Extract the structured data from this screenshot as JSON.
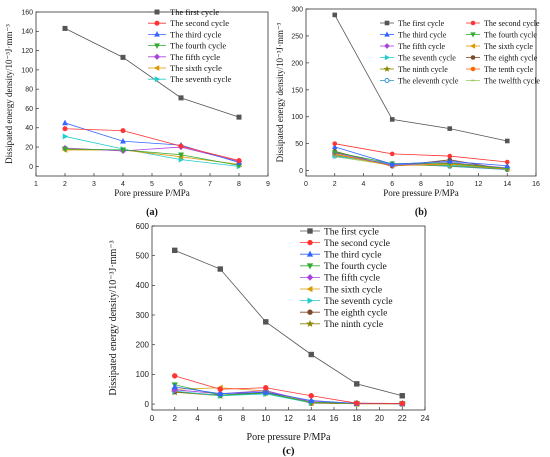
{
  "chart_data": [
    {
      "type": "line",
      "panel_label": "(a)",
      "xlabel": "Pore pressure  P/MPa",
      "ylabel": "Dissipated energy density/10⁻³J·mm⁻³",
      "xlim": [
        1,
        9
      ],
      "ylim": [
        -10,
        160
      ],
      "xticks": [
        1,
        2,
        3,
        4,
        5,
        6,
        7,
        8,
        9
      ],
      "yticks": [
        0,
        20,
        40,
        60,
        80,
        100,
        120,
        140,
        160
      ],
      "legend_position": "top-right",
      "x": [
        2,
        4,
        6,
        8
      ],
      "series": [
        {
          "name": "The first cycle",
          "color": "#555555",
          "marker": "square",
          "values": [
            143,
            113,
            71,
            51
          ]
        },
        {
          "name": "The second cycle",
          "color": "#ff3333",
          "marker": "circle",
          "values": [
            39,
            37,
            21,
            6
          ]
        },
        {
          "name": "The third cycle",
          "color": "#3366ff",
          "marker": "triangle-up",
          "values": [
            45,
            26,
            22,
            4
          ]
        },
        {
          "name": "The fourth cycle",
          "color": "#33aa33",
          "marker": "triangle-down",
          "values": [
            18,
            17,
            12,
            1
          ]
        },
        {
          "name": "The fifth cycle",
          "color": "#aa44dd",
          "marker": "diamond",
          "values": [
            19,
            16,
            20,
            5
          ]
        },
        {
          "name": "The sixth cycle",
          "color": "#dd9900",
          "marker": "triangle-left",
          "values": [
            17,
            17,
            10,
            2
          ]
        },
        {
          "name": "The seventh cycle",
          "color": "#22cccc",
          "marker": "triangle-right",
          "values": [
            31,
            18,
            7,
            0
          ]
        }
      ]
    },
    {
      "type": "line",
      "panel_label": "(b)",
      "xlabel": "Pore pressure  P/MPa",
      "ylabel": "Dissipated energy density/10⁻³J·mm⁻³",
      "xlim": [
        0,
        16
      ],
      "ylim": [
        -10,
        300
      ],
      "xticks": [
        0,
        2,
        4,
        6,
        8,
        10,
        12,
        14,
        16
      ],
      "yticks": [
        0,
        50,
        100,
        150,
        200,
        250,
        300
      ],
      "legend_position": "top-right",
      "x": [
        2,
        6,
        10,
        14
      ],
      "series": [
        {
          "name": "The first cycle",
          "color": "#555555",
          "marker": "square",
          "values": [
            289,
            95,
            78,
            55
          ]
        },
        {
          "name": "The second cycle",
          "color": "#ff3333",
          "marker": "circle",
          "values": [
            50,
            31,
            27,
            16
          ]
        },
        {
          "name": "The third cycle",
          "color": "#3366ff",
          "marker": "triangle-up",
          "values": [
            44,
            12,
            17,
            9
          ]
        },
        {
          "name": "The fourth cycle",
          "color": "#33aa33",
          "marker": "triangle-down",
          "values": [
            34,
            13,
            14,
            4
          ]
        },
        {
          "name": "The fifth cycle",
          "color": "#aa44dd",
          "marker": "diamond",
          "values": [
            33,
            10,
            15,
            5
          ]
        },
        {
          "name": "The sixth cycle",
          "color": "#dd9900",
          "marker": "triangle-left",
          "values": [
            30,
            9,
            12,
            3
          ]
        },
        {
          "name": "The seventh cycle",
          "color": "#22cccc",
          "marker": "triangle-right",
          "values": [
            28,
            12,
            10,
            4
          ]
        },
        {
          "name": "The eighth cycle",
          "color": "#7a4a2a",
          "marker": "circle",
          "values": [
            36,
            8,
            20,
            2
          ]
        },
        {
          "name": "The ninth cycle",
          "color": "#888800",
          "marker": "star",
          "values": [
            29,
            11,
            9,
            3
          ]
        },
        {
          "name": "The tenth cycle",
          "color": "#ff6600",
          "marker": "circle",
          "values": [
            31,
            9,
            13,
            4
          ]
        },
        {
          "name": "The eleventh cycle",
          "color": "#3399cc",
          "marker": "circle-half",
          "values": [
            27,
            13,
            8,
            2
          ]
        },
        {
          "name": "The twelfth cycle",
          "color": "#99cc66",
          "marker": "hline",
          "values": [
            26,
            10,
            11,
            3
          ]
        }
      ]
    },
    {
      "type": "line",
      "panel_label": "(c)",
      "xlabel": "Pore pressure  P/MPa",
      "ylabel": "Dissipated energy density/10⁻³J·mm⁻³",
      "xlim": [
        0,
        24
      ],
      "ylim": [
        -20,
        600
      ],
      "xticks": [
        0,
        2,
        4,
        6,
        8,
        10,
        12,
        14,
        16,
        18,
        20,
        22,
        24
      ],
      "yticks": [
        0,
        100,
        200,
        300,
        400,
        500,
        600
      ],
      "legend_position": "top-right",
      "x": [
        2,
        6,
        10,
        14,
        18,
        22
      ],
      "series": [
        {
          "name": "The first cycle",
          "color": "#555555",
          "marker": "square",
          "values": [
            518,
            455,
            277,
            167,
            68,
            28
          ]
        },
        {
          "name": "The second cycle",
          "color": "#ff3333",
          "marker": "circle",
          "values": [
            95,
            50,
            55,
            28,
            3,
            2
          ]
        },
        {
          "name": "The third cycle",
          "color": "#3366ff",
          "marker": "triangle-up",
          "values": [
            58,
            35,
            40,
            12,
            2,
            2
          ]
        },
        {
          "name": "The fourth cycle",
          "color": "#33aa33",
          "marker": "triangle-down",
          "values": [
            65,
            30,
            37,
            6,
            2,
            1
          ]
        },
        {
          "name": "The fifth cycle",
          "color": "#aa44dd",
          "marker": "diamond",
          "values": [
            48,
            35,
            45,
            8,
            3,
            1
          ]
        },
        {
          "name": "The sixth cycle",
          "color": "#dd9900",
          "marker": "triangle-left",
          "values": [
            50,
            55,
            44,
            5,
            1,
            1
          ]
        },
        {
          "name": "The seventh cycle",
          "color": "#22cccc",
          "marker": "triangle-right",
          "values": [
            44,
            28,
            34,
            4,
            2,
            1
          ]
        },
        {
          "name": "The eighth cycle",
          "color": "#7a4a2a",
          "marker": "circle",
          "values": [
            42,
            30,
            40,
            3,
            1,
            1
          ]
        },
        {
          "name": "The ninth cycle",
          "color": "#888800",
          "marker": "star",
          "values": [
            40,
            28,
            38,
            4,
            1,
            1
          ]
        }
      ]
    }
  ]
}
